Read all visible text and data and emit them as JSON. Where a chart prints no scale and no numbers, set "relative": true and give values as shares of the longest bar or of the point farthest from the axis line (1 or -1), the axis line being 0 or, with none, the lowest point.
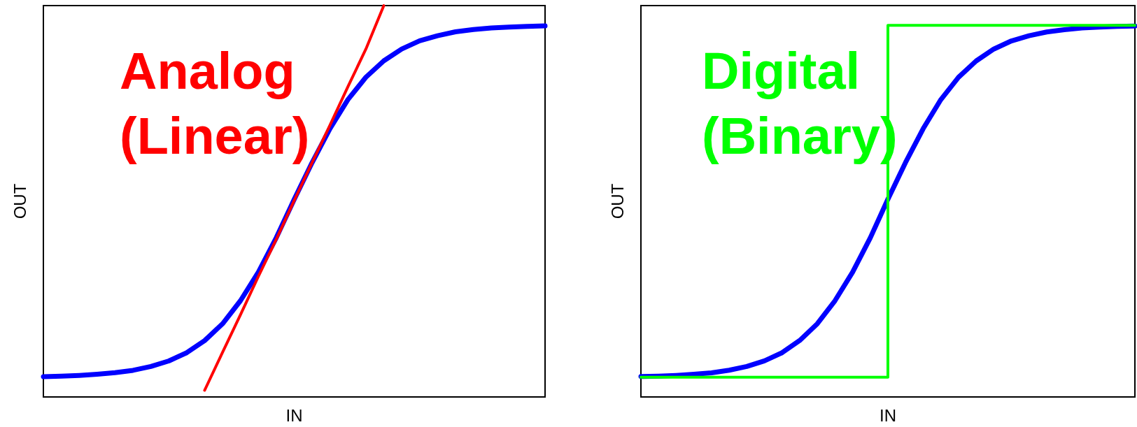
{
  "chart_data": [
    {
      "type": "line",
      "relative": true,
      "xlabel": "IN",
      "ylabel": "OUT",
      "legend": false,
      "grid": false,
      "marker": "none",
      "line_style": "solid",
      "categories": [
        null,
        null,
        null,
        null,
        null,
        null,
        null,
        null,
        null,
        null,
        null,
        null,
        null,
        null,
        null,
        null,
        null,
        null,
        null,
        null,
        null,
        null,
        null,
        null,
        null,
        null,
        null,
        null,
        null
      ],
      "series": [
        {
          "color": "#0000ff",
          "values": [
            0.052,
            0.053,
            0.055,
            0.058,
            0.062,
            0.068,
            0.078,
            0.092,
            0.113,
            0.144,
            0.187,
            0.246,
            0.319,
            0.407,
            0.505,
            0.599,
            0.686,
            0.76,
            0.817,
            0.859,
            0.889,
            0.91,
            0.923,
            0.933,
            0.939,
            0.943,
            0.945,
            0.947,
            0.948
          ]
        },
        {
          "name": "Analog (Linear)",
          "color": "#ff0000",
          "values": [
            null,
            null,
            null,
            null,
            null,
            null,
            null,
            null,
            null,
            0.017,
            0.114,
            0.21,
            0.308,
            0.403,
            0.502,
            0.599,
            0.695,
            0.793,
            0.889,
            1,
            null,
            null,
            null,
            null,
            null,
            null,
            null,
            null,
            null
          ]
        }
      ]
    },
    {
      "type": "line",
      "relative": true,
      "xlabel": "IN",
      "ylabel": "OUT",
      "legend": false,
      "grid": false,
      "marker": "none",
      "line_style": "solid",
      "categories": [
        null,
        null,
        null,
        null,
        null,
        null,
        null,
        null,
        null,
        null,
        null,
        null,
        null,
        null,
        null,
        null,
        null,
        null,
        null,
        null,
        null,
        null,
        null,
        null,
        null,
        null,
        null,
        null,
        null
      ],
      "series": [
        {
          "color": "#0000ff",
          "values": [
            0.055,
            0.056,
            0.058,
            0.061,
            0.065,
            0.072,
            0.082,
            0.097,
            0.119,
            0.152,
            0.197,
            0.259,
            0.336,
            0.428,
            0.532,
            0.631,
            0.722,
            0.8,
            0.86,
            0.904,
            0.936,
            0.958,
            0.972,
            0.982,
            0.988,
            0.993,
            0.995,
            0.997,
            0.998
          ]
        },
        {
          "name": "Digital (Binary)",
          "type": "step",
          "color": "#00ff00",
          "values": [
            0.053,
            0.053,
            0.053,
            0.053,
            0.053,
            0.053,
            0.053,
            0.053,
            0.053,
            0.053,
            0.053,
            0.053,
            0.053,
            0.053,
            0.053,
            1,
            1,
            1,
            1,
            1,
            1,
            1,
            1,
            1,
            1,
            1,
            1,
            1,
            1
          ]
        }
      ]
    }
  ]
}
